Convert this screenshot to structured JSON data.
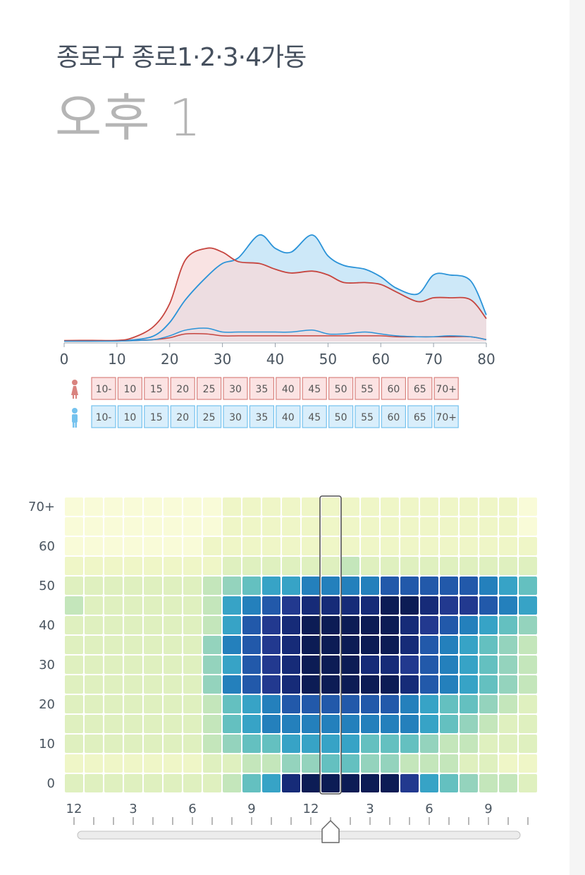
{
  "header": {
    "district": "종로구 종로1·2·3·4가동",
    "time_label": "오후 1"
  },
  "chart_data": [
    {
      "type": "area",
      "title": "",
      "xlabel": "",
      "ylabel": "",
      "xlim": [
        0,
        80
      ],
      "x_ticks": [
        0,
        10,
        20,
        30,
        40,
        50,
        60,
        70,
        80
      ],
      "x": [
        0,
        5,
        10,
        13,
        17,
        20,
        23,
        27,
        30,
        33,
        37,
        40,
        43,
        47,
        50,
        53,
        57,
        60,
        63,
        67,
        70,
        73,
        77,
        80
      ],
      "series": [
        {
          "name": "female",
          "color": "#c6453f",
          "fill": "#f7dada",
          "values": [
            0.5,
            0.6,
            0.6,
            2,
            8,
            20,
            43,
            49,
            47,
            42,
            41,
            38,
            36,
            37,
            35,
            31,
            31,
            30,
            26,
            21,
            23,
            23,
            22,
            12
          ]
        },
        {
          "name": "male",
          "color": "#2b93d8",
          "fill": "#cde8f8",
          "values": [
            0.3,
            0.4,
            0.4,
            0.8,
            3,
            10,
            22,
            34,
            41,
            44,
            56,
            49,
            47,
            56,
            45,
            40,
            38,
            34,
            28,
            25,
            35,
            35,
            32,
            14
          ]
        },
        {
          "name": "female_current",
          "color": "#c6453f",
          "values": [
            0.2,
            0.2,
            0.3,
            0.5,
            1,
            2,
            4,
            4,
            3,
            3,
            3,
            3,
            3,
            3,
            3,
            3,
            3,
            3,
            2.5,
            2.5,
            2.5,
            2.5,
            2.5,
            1
          ]
        },
        {
          "name": "male_current",
          "color": "#2b93d8",
          "values": [
            0.2,
            0.2,
            0.2,
            0.5,
            1,
            3,
            6,
            7,
            5,
            5,
            5,
            5,
            5,
            6,
            4,
            4,
            5,
            4,
            3,
            2.5,
            2.5,
            3,
            2.5,
            1
          ]
        }
      ]
    },
    {
      "type": "heatmap",
      "title": "",
      "y_labels": [
        "70+",
        "60",
        "50",
        "40",
        "30",
        "20",
        "10",
        "0"
      ],
      "x_labels": [
        "12",
        "3",
        "6",
        "9",
        "12",
        "3",
        "6",
        "9"
      ],
      "rows_bottom_to_top": 15,
      "columns": 24,
      "selected_column": 13,
      "color_scale": [
        "#f9fbd8",
        "#eff6c7",
        "#dff0bf",
        "#c4e6bb",
        "#94d3bd",
        "#64c0c0",
        "#37a3c6",
        "#2480bc",
        "#2259aa",
        "#22398f",
        "#162b78",
        "#0c1c55"
      ],
      "values": [
        [
          0,
          0,
          0,
          0,
          0,
          0,
          0,
          0,
          1,
          1,
          1,
          1,
          1,
          1,
          1,
          1,
          1,
          1,
          1,
          1,
          1,
          1,
          1,
          0
        ],
        [
          0,
          0,
          0,
          0,
          0,
          0,
          0,
          0,
          1,
          1,
          1,
          1,
          1,
          1,
          1,
          1,
          1,
          1,
          1,
          1,
          1,
          1,
          1,
          0
        ],
        [
          0,
          0,
          0,
          0,
          0,
          0,
          0,
          1,
          1,
          1,
          1,
          1,
          1,
          1,
          1,
          1,
          1,
          1,
          1,
          1,
          1,
          1,
          1,
          1
        ],
        [
          1,
          1,
          1,
          1,
          1,
          1,
          1,
          1,
          2,
          2,
          2,
          2,
          2,
          2,
          3,
          2,
          2,
          2,
          2,
          2,
          2,
          2,
          2,
          2
        ],
        [
          2,
          2,
          2,
          2,
          2,
          2,
          2,
          3,
          4,
          5,
          6,
          6,
          7,
          7,
          7,
          7,
          8,
          8,
          8,
          8,
          8,
          7,
          6,
          5
        ],
        [
          3,
          2,
          2,
          2,
          2,
          2,
          2,
          3,
          6,
          7,
          8,
          9,
          10,
          10,
          10,
          10,
          11,
          11,
          10,
          9,
          9,
          8,
          7,
          6
        ],
        [
          2,
          2,
          2,
          2,
          2,
          2,
          2,
          3,
          6,
          8,
          9,
          10,
          11,
          11,
          11,
          11,
          11,
          10,
          9,
          8,
          7,
          6,
          5,
          4
        ],
        [
          2,
          2,
          2,
          2,
          2,
          2,
          2,
          4,
          7,
          8,
          9,
          10,
          11,
          11,
          11,
          11,
          11,
          10,
          8,
          7,
          6,
          5,
          4,
          3
        ],
        [
          2,
          2,
          2,
          2,
          2,
          2,
          2,
          4,
          6,
          8,
          9,
          10,
          11,
          11,
          11,
          10,
          10,
          9,
          8,
          7,
          6,
          5,
          4,
          3
        ],
        [
          2,
          2,
          2,
          2,
          2,
          2,
          2,
          4,
          7,
          8,
          9,
          10,
          11,
          11,
          11,
          11,
          11,
          10,
          8,
          7,
          6,
          5,
          4,
          3
        ],
        [
          2,
          2,
          2,
          2,
          2,
          2,
          2,
          3,
          5,
          6,
          7,
          8,
          8,
          8,
          8,
          8,
          8,
          7,
          6,
          5,
          5,
          4,
          3,
          2
        ],
        [
          2,
          2,
          2,
          2,
          2,
          2,
          2,
          3,
          5,
          6,
          7,
          7,
          7,
          7,
          7,
          7,
          7,
          7,
          6,
          5,
          4,
          3,
          2,
          2
        ],
        [
          2,
          2,
          2,
          2,
          2,
          2,
          2,
          3,
          4,
          5,
          5,
          6,
          6,
          6,
          6,
          5,
          5,
          5,
          4,
          3,
          3,
          2,
          2,
          2
        ],
        [
          1,
          1,
          1,
          1,
          1,
          1,
          1,
          2,
          2,
          3,
          3,
          4,
          4,
          5,
          5,
          4,
          4,
          3,
          3,
          3,
          2,
          2,
          1,
          1
        ],
        [
          2,
          2,
          2,
          2,
          2,
          2,
          2,
          2,
          3,
          5,
          6,
          10,
          11,
          11,
          11,
          11,
          11,
          9,
          6,
          5,
          4,
          3,
          3,
          2
        ]
      ]
    }
  ],
  "legend": {
    "female_icon": "female-person-icon",
    "male_icon": "male-person-icon",
    "female_buttons": [
      "10-",
      "10",
      "15",
      "20",
      "25",
      "30",
      "35",
      "40",
      "45",
      "50",
      "55",
      "60",
      "65",
      "70+"
    ],
    "male_buttons": [
      "10-",
      "10",
      "15",
      "20",
      "25",
      "30",
      "35",
      "40",
      "45",
      "50",
      "55",
      "60",
      "65",
      "70+"
    ],
    "female_color": "#d9837f",
    "female_bg": "#fbe3e3",
    "male_color": "#75c2ee",
    "male_bg": "#d9eefb"
  },
  "time_slider": {
    "value_hour": 13,
    "min": 0,
    "max": 23,
    "handle_icon": "slider-handle-icon"
  }
}
